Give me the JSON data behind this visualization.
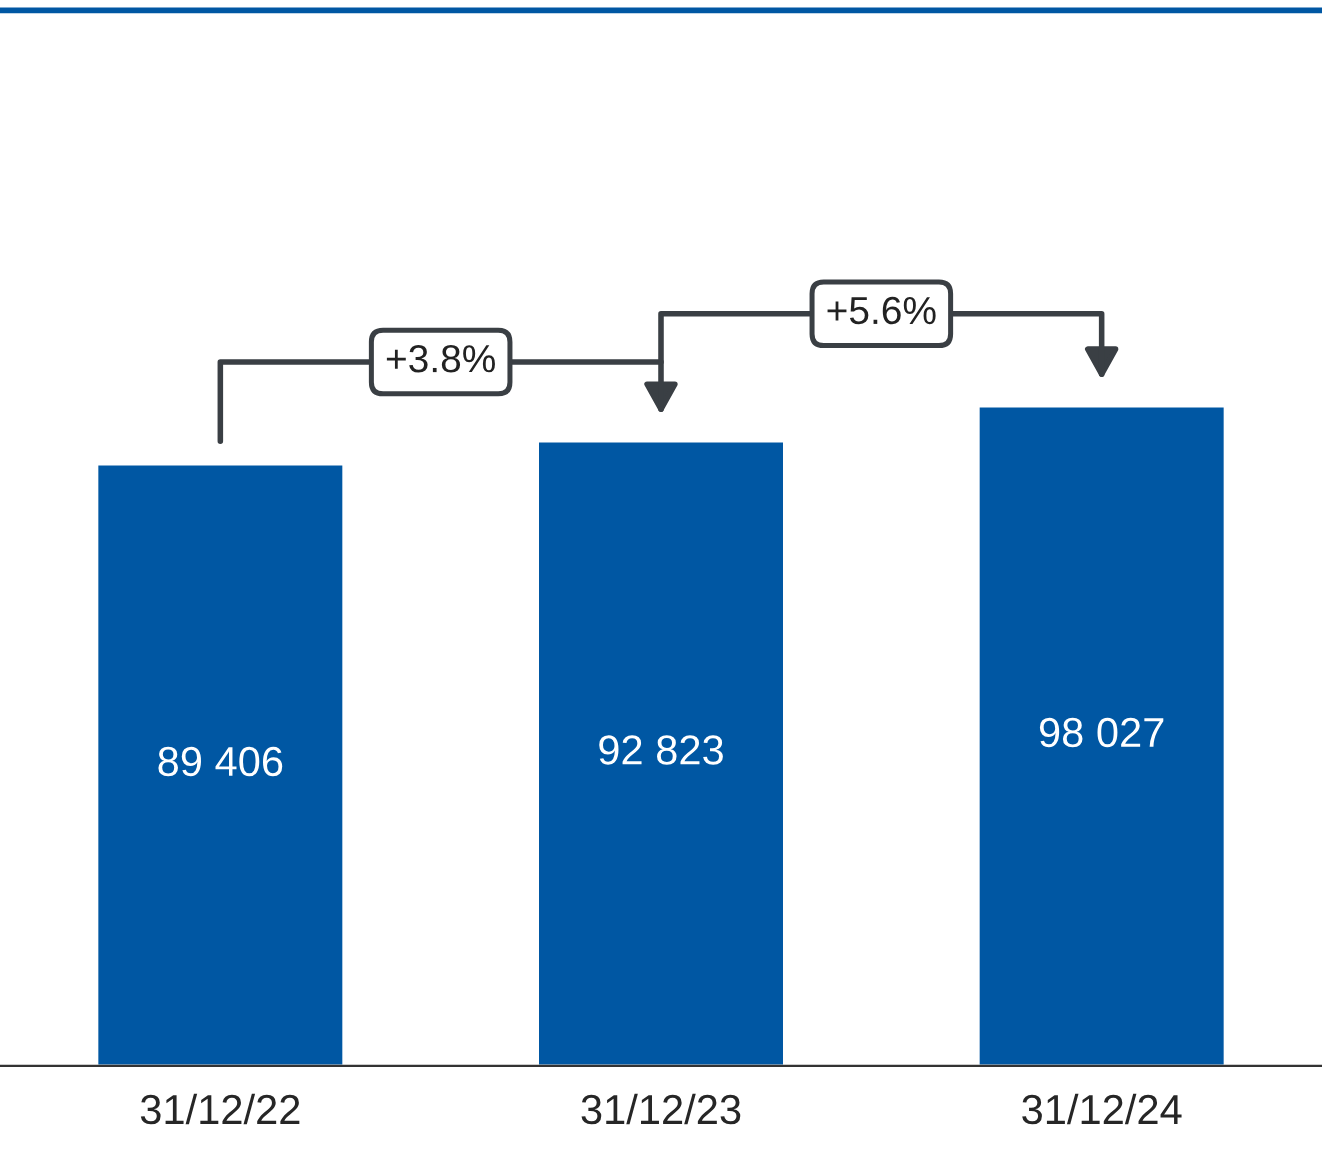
{
  "chart_data": {
    "type": "bar",
    "categories": [
      "31/12/22",
      "31/12/23",
      "31/12/24"
    ],
    "values": [
      89406,
      92823,
      98027
    ],
    "value_labels": [
      "89 406",
      "92 823",
      "98 027"
    ],
    "color": "#0057a3",
    "annotations": [
      "+3.8%",
      "+5.6%"
    ],
    "grid": false,
    "legend": false
  }
}
